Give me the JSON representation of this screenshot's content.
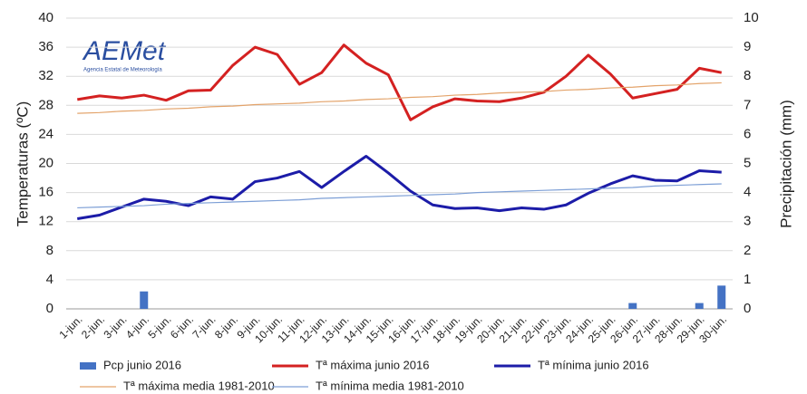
{
  "chart_data": {
    "type": "line",
    "logo": {
      "name": "AEMet",
      "subtitle": "Agencia Estatal de Meteorología"
    },
    "ylabel": "Temperaturas (ºC)",
    "y2label": "Precipitación (mm)",
    "categories": [
      "1-jun.",
      "2-jun.",
      "3-jun.",
      "4-jun.",
      "5-jun.",
      "6-jun.",
      "7-jun.",
      "8-jun.",
      "9-jun.",
      "10-jun.",
      "11-jun.",
      "12-jun.",
      "13-jun.",
      "14-jun.",
      "15-jun.",
      "16-jun.",
      "17-jun.",
      "18-jun.",
      "19-jun.",
      "20-jun.",
      "21-jun.",
      "22-jun.",
      "23-jun.",
      "24-jun.",
      "25-jun.",
      "26-jun.",
      "27-jun.",
      "28-jun.",
      "29-jun.",
      "30-jun."
    ],
    "ylim": [
      0,
      40
    ],
    "yticks": [
      0,
      4,
      8,
      12,
      16,
      20,
      24,
      28,
      32,
      36,
      40
    ],
    "y2lim": [
      0,
      10
    ],
    "y2ticks": [
      0,
      1,
      2,
      3,
      4,
      5,
      6,
      7,
      8,
      9,
      10
    ],
    "grid": true,
    "series": [
      {
        "name": "Pcp junio 2016",
        "kind": "bar",
        "axis": "y2",
        "color": "#4472c4",
        "values": [
          0,
          0,
          0,
          0.6,
          0,
          0,
          0,
          0,
          0,
          0,
          0,
          0,
          0,
          0,
          0,
          0,
          0,
          0,
          0,
          0,
          0,
          0,
          0,
          0,
          0,
          0.2,
          0,
          0,
          0.2,
          0.8
        ]
      },
      {
        "name": "Tª máxima junio 2016",
        "kind": "line",
        "color": "#d42121",
        "width": 3,
        "values": [
          28.8,
          29.3,
          29.0,
          29.4,
          28.7,
          30.0,
          30.1,
          33.5,
          36.0,
          35.0,
          30.9,
          32.5,
          36.3,
          33.8,
          32.2,
          26.0,
          27.8,
          28.9,
          28.6,
          28.5,
          29.0,
          29.8,
          32.0,
          34.9,
          32.3,
          29.0,
          29.6,
          30.2,
          33.1,
          32.5
        ]
      },
      {
        "name": "Tª mínima junio 2016",
        "kind": "line",
        "color": "#1c1ca8",
        "width": 3,
        "values": [
          12.4,
          12.9,
          14.0,
          15.1,
          14.8,
          14.2,
          15.4,
          15.1,
          17.5,
          18.0,
          18.9,
          16.7,
          18.9,
          21.0,
          18.7,
          16.2,
          14.3,
          13.8,
          13.9,
          13.5,
          13.9,
          13.7,
          14.3,
          15.9,
          17.2,
          18.3,
          17.7,
          17.6,
          19.0,
          18.8
        ]
      },
      {
        "name": "Tª máxima media 1981-2010",
        "kind": "line",
        "color": "#e3a36a",
        "width": 1.2,
        "values": [
          26.9,
          27.0,
          27.2,
          27.3,
          27.5,
          27.6,
          27.8,
          27.9,
          28.1,
          28.2,
          28.3,
          28.5,
          28.6,
          28.8,
          28.9,
          29.1,
          29.2,
          29.4,
          29.5,
          29.7,
          29.8,
          29.9,
          30.1,
          30.2,
          30.4,
          30.5,
          30.7,
          30.8,
          31.0,
          31.1
        ]
      },
      {
        "name": "Tª mínima media 1981-2010",
        "kind": "line",
        "color": "#7d9fd6",
        "width": 1.2,
        "values": [
          13.9,
          14.0,
          14.1,
          14.2,
          14.4,
          14.5,
          14.6,
          14.7,
          14.8,
          14.9,
          15.0,
          15.2,
          15.3,
          15.4,
          15.5,
          15.6,
          15.7,
          15.8,
          16.0,
          16.1,
          16.2,
          16.3,
          16.4,
          16.5,
          16.6,
          16.7,
          16.9,
          17.0,
          17.1,
          17.2
        ]
      }
    ]
  }
}
